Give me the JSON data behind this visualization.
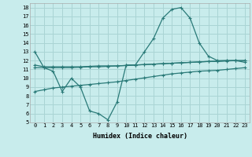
{
  "xlabel": "Humidex (Indice chaleur)",
  "x": [
    0,
    1,
    2,
    3,
    4,
    5,
    6,
    7,
    8,
    9,
    10,
    11,
    12,
    13,
    14,
    15,
    16,
    17,
    18,
    19,
    20,
    21,
    22,
    23
  ],
  "line1": [
    13.0,
    11.2,
    10.8,
    8.5,
    10.0,
    9.0,
    6.3,
    6.0,
    5.3,
    7.3,
    11.5,
    11.5,
    13.0,
    14.5,
    16.8,
    17.8,
    18.0,
    16.8,
    14.0,
    12.5,
    12.0,
    12.0,
    12.0,
    11.8
  ],
  "line2": [
    11.5,
    11.3,
    11.3,
    11.3,
    11.3,
    11.3,
    11.35,
    11.4,
    11.4,
    11.4,
    11.45,
    11.5,
    11.55,
    11.6,
    11.65,
    11.7,
    11.75,
    11.8,
    11.85,
    11.9,
    11.95,
    12.0,
    12.0,
    12.0
  ],
  "line3": [
    11.2,
    11.2,
    11.2,
    11.2,
    11.2,
    11.25,
    11.3,
    11.3,
    11.35,
    11.4,
    11.45,
    11.5,
    11.55,
    11.6,
    11.65,
    11.7,
    11.75,
    11.8,
    11.85,
    11.9,
    11.9,
    11.95,
    12.0,
    12.0
  ],
  "line4": [
    8.5,
    8.7,
    8.9,
    9.0,
    9.1,
    9.2,
    9.3,
    9.4,
    9.5,
    9.6,
    9.75,
    9.9,
    10.05,
    10.2,
    10.35,
    10.5,
    10.6,
    10.7,
    10.8,
    10.85,
    10.9,
    11.0,
    11.1,
    11.2
  ],
  "color": "#2a7a78",
  "bg_color": "#c8ecec",
  "grid_color": "#aad4d4",
  "ylim": [
    5,
    18.5
  ],
  "yticks": [
    5,
    6,
    7,
    8,
    9,
    10,
    11,
    12,
    13,
    14,
    15,
    16,
    17,
    18
  ],
  "xticks": [
    0,
    1,
    2,
    3,
    4,
    5,
    6,
    7,
    8,
    9,
    10,
    11,
    12,
    13,
    14,
    15,
    16,
    17,
    18,
    19,
    20,
    21,
    22,
    23
  ]
}
